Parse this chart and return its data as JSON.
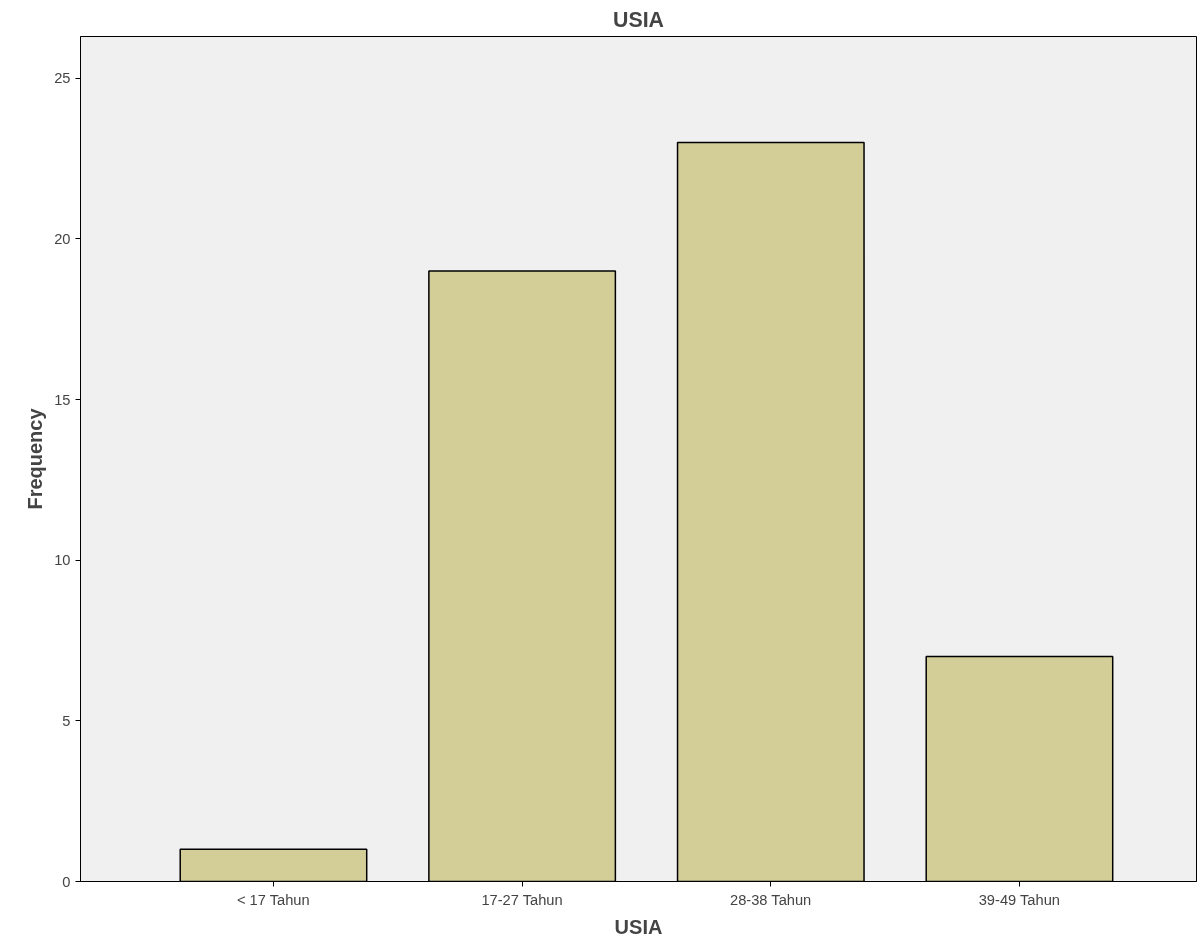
{
  "chart_data": {
    "type": "bar",
    "title": "USIA",
    "xlabel": "USIA",
    "ylabel": "Frequency",
    "categories": [
      "< 17 Tahun",
      "17-27 Tahun",
      "28-38 Tahun",
      "39-49 Tahun"
    ],
    "values": [
      1,
      19,
      23,
      7
    ],
    "color": "#d3cd98",
    "ylim": [
      0,
      26.3
    ],
    "yticks": [
      0,
      5,
      10,
      15,
      20,
      25
    ],
    "grid": false
  }
}
